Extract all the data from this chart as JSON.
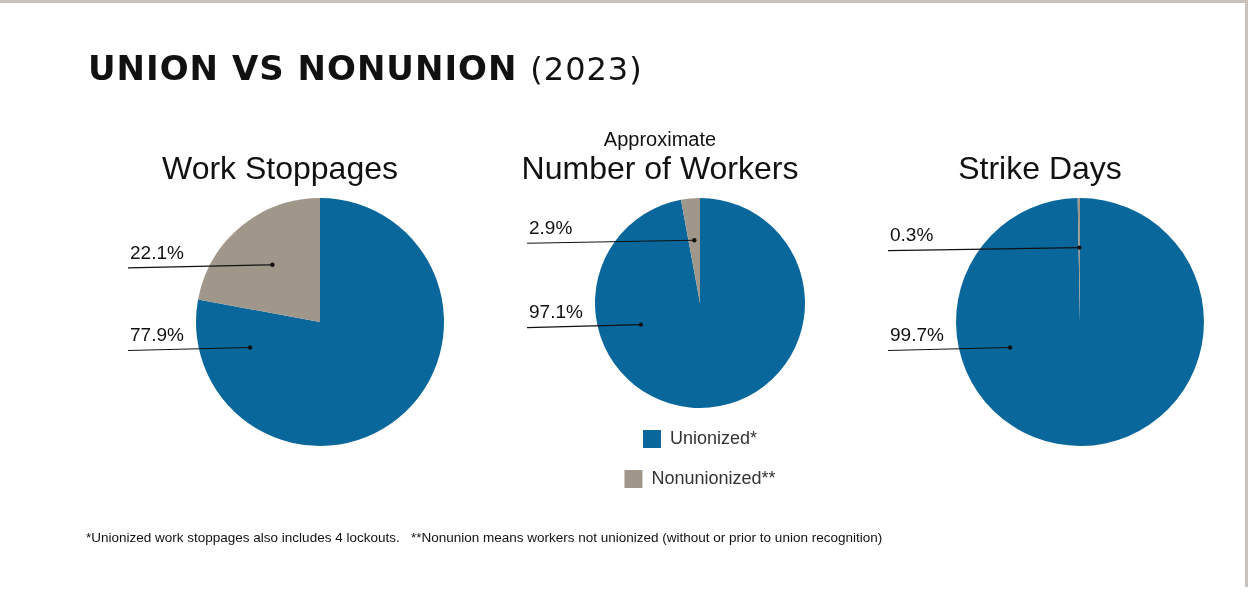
{
  "chart_data": [
    {
      "type": "other",
      "title": "UNION VS NONUNION (2023)"
    },
    {
      "type": "pie",
      "title": "Work Stoppages",
      "values": [
        77.9,
        22.1
      ],
      "colors": [
        "#09679b",
        "#a0978a"
      ],
      "value_labels": [
        "77.9%",
        "22.1%"
      ],
      "legend": false
    },
    {
      "type": "pie",
      "subtitle": "Approximate",
      "title": "Number of Workers",
      "categories": [
        "Unionized*",
        "Nonunionized**"
      ],
      "values": [
        97.1,
        2.9
      ],
      "colors": [
        "#09679b",
        "#a0978a"
      ],
      "value_labels": [
        "97.1%",
        "2.9%"
      ],
      "legend": "bottom"
    },
    {
      "type": "pie",
      "title": "Strike Days",
      "values": [
        99.7,
        0.3
      ],
      "colors": [
        "#09679b",
        "#a0978a"
      ],
      "value_labels": [
        "99.7%",
        "0.3%"
      ],
      "legend": false
    },
    {
      "type": "other",
      "annotations": [
        "*Unionized work stoppages also includes 4 lockouts.   **Nonunion means workers not unionized (without or prior to union recognition)"
      ]
    }
  ]
}
